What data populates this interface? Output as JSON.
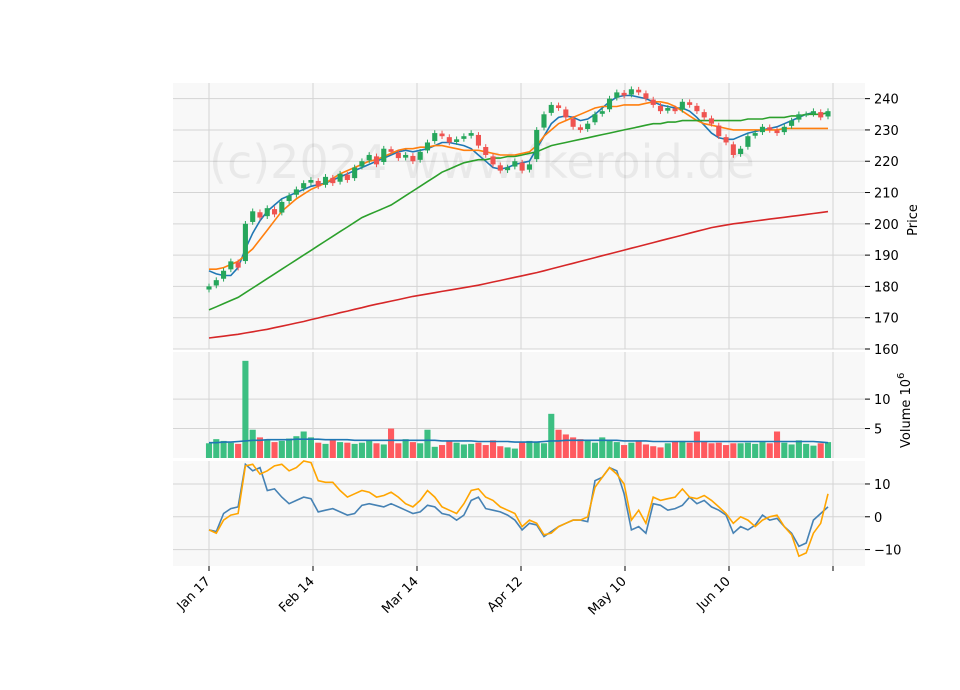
{
  "chart_data": {
    "type": "candlestick",
    "watermark": "(c)2024 www.fkeroid.de",
    "x_tick_labels": [
      "Jan 17",
      "Feb 14",
      "Mar 14",
      "Apr 12",
      "May 10",
      "Jun 10"
    ],
    "price_panel": {
      "ylabel": "Price",
      "ylim": [
        160,
        245
      ],
      "yticks": [
        160,
        170,
        180,
        190,
        200,
        210,
        220,
        230,
        240
      ],
      "ohlc_close": [
        180,
        182,
        185,
        188,
        186,
        200,
        204,
        202,
        205,
        203,
        207,
        209,
        211,
        213,
        214,
        212,
        215,
        213,
        216,
        214,
        218,
        220,
        222,
        219,
        224,
        223,
        221,
        222,
        220,
        223,
        226,
        229,
        228,
        226,
        227,
        228,
        229,
        225,
        222,
        219,
        217,
        218,
        220,
        217,
        219,
        230,
        235,
        238,
        237,
        234,
        231,
        230,
        232,
        235,
        236,
        240,
        242,
        241,
        243,
        242,
        240,
        238,
        236,
        237,
        236,
        239,
        238,
        236,
        234,
        232,
        228,
        226,
        222,
        224,
        228,
        229,
        231,
        230,
        229,
        231,
        233,
        235,
        235,
        236,
        234,
        236
      ]
    },
    "moving_averages": [
      {
        "color": "#1f77b4",
        "values": [
          185,
          184,
          183.5,
          183.5,
          186,
          192,
          197,
          201,
          204,
          206,
          208,
          209,
          210,
          211,
          212,
          212.5,
          213,
          214,
          215,
          216,
          217,
          218,
          219,
          220,
          221,
          222,
          223,
          223.5,
          223,
          223.5,
          224,
          225,
          226,
          226,
          225.5,
          225,
          224,
          222,
          220,
          218,
          217.5,
          218,
          219,
          219.5,
          220,
          224,
          228,
          232,
          234,
          234.5,
          234,
          233,
          233.5,
          235,
          237,
          239,
          240.5,
          241,
          241,
          240.5,
          240,
          239,
          238,
          237.5,
          237,
          237,
          236,
          234,
          231.5,
          229,
          227.5,
          227,
          227,
          228,
          229,
          229.5,
          230,
          230.5,
          231,
          232,
          233,
          234,
          235,
          235.5
        ]
      },
      {
        "color": "#ff7f0e",
        "values": [
          185.5,
          185.5,
          186,
          187,
          188,
          190,
          192,
          195,
          198,
          201,
          204,
          206,
          208,
          209.5,
          211,
          212,
          213,
          214.5,
          216,
          217,
          218,
          219,
          220,
          220.5,
          221.5,
          222.5,
          223.5,
          224,
          224,
          224.5,
          224.5,
          225,
          225,
          224.5,
          224,
          223.5,
          223.5,
          223.5,
          223,
          222.5,
          222,
          222,
          222,
          222.5,
          223,
          225,
          228,
          230,
          232,
          233,
          234,
          235,
          236,
          237,
          237.5,
          237.5,
          237.5,
          238,
          238,
          238,
          238.5,
          239,
          239,
          238.5,
          237.5,
          236,
          234.5,
          233,
          232,
          231.5,
          231,
          230.5,
          230,
          230,
          230,
          230,
          230,
          230,
          230,
          230.5,
          230.5,
          230.5,
          230.5,
          230.5,
          230.5,
          230.5
        ]
      },
      {
        "color": "#2ca02c",
        "values": [
          172.5,
          173.5,
          174.5,
          175.5,
          176.5,
          178,
          179.5,
          181,
          182.5,
          184,
          185.5,
          187,
          188.5,
          190,
          191.5,
          193,
          194.5,
          196,
          197.5,
          199,
          200.5,
          202,
          203,
          204,
          205,
          206,
          207.5,
          209,
          210.5,
          212,
          213.5,
          215,
          216.5,
          217.5,
          218.5,
          219.5,
          220,
          220.5,
          220.5,
          221,
          221,
          221.5,
          221.5,
          222,
          222.5,
          223,
          224,
          225,
          225.5,
          226,
          226.5,
          227,
          227.5,
          228,
          228.5,
          229,
          229.5,
          230,
          230.5,
          231,
          231.5,
          232,
          232,
          232.5,
          232.5,
          233,
          233,
          233,
          233,
          233,
          233,
          233,
          233,
          233,
          233.5,
          233.5,
          233.5,
          234,
          234,
          234,
          234.5,
          234.5,
          235,
          235,
          235,
          235.5
        ]
      },
      {
        "color": "#d62728",
        "values": [
          163.5,
          163.8,
          164.1,
          164.4,
          164.7,
          165.1,
          165.5,
          165.9,
          166.3,
          166.8,
          167.3,
          167.8,
          168.3,
          168.8,
          169.4,
          169.9,
          170.5,
          171,
          171.6,
          172.1,
          172.7,
          173.2,
          173.8,
          174.3,
          174.8,
          175.3,
          175.8,
          176.3,
          176.8,
          177.2,
          177.6,
          178,
          178.4,
          178.8,
          179.2,
          179.6,
          180,
          180.4,
          180.9,
          181.4,
          181.9,
          182.4,
          182.9,
          183.4,
          183.9,
          184.4,
          185,
          185.6,
          186.2,
          186.8,
          187.4,
          188,
          188.6,
          189.2,
          189.8,
          190.4,
          191,
          191.6,
          192.2,
          192.8,
          193.4,
          194,
          194.6,
          195.2,
          195.8,
          196.4,
          197,
          197.6,
          198.2,
          198.8,
          199.2,
          199.6,
          200,
          200.3,
          200.6,
          200.9,
          201.2,
          201.5,
          201.8,
          202.1,
          202.4,
          202.7,
          203,
          203.3,
          203.6,
          203.9
        ]
      }
    ],
    "volume_panel": {
      "ylabel": "Volume  10",
      "ylabel_exponent": "6",
      "ylim": [
        0,
        18
      ],
      "yticks": [
        5,
        10
      ],
      "values": [
        2.5,
        3.2,
        2.9,
        2.6,
        2.4,
        16.5,
        4.8,
        3.5,
        3.0,
        2.7,
        2.9,
        3.3,
        3.7,
        4.5,
        3.5,
        2.6,
        2.4,
        3.0,
        2.7,
        2.6,
        2.4,
        2.6,
        2.9,
        2.5,
        2.3,
        5.0,
        2.5,
        3.2,
        2.7,
        2.5,
        4.8,
        1.9,
        2.2,
        2.8,
        2.6,
        2.3,
        2.4,
        2.6,
        2.2,
        3.0,
        2.0,
        1.8,
        1.6,
        2.8,
        2.9,
        2.7,
        2.5,
        7.5,
        4.8,
        4.0,
        3.5,
        3.2,
        2.9,
        2.6,
        3.5,
        3.0,
        2.7,
        2.2,
        2.6,
        2.9,
        2.3,
        2.0,
        1.8,
        2.5,
        2.8,
        2.9,
        2.6,
        4.5,
        2.7,
        2.5,
        2.6,
        2.2,
        2.5,
        2.5,
        2.6,
        2.4,
        2.7,
        2.5,
        4.5,
        2.6,
        2.3,
        3.0,
        2.4,
        2.1,
        2.5,
        2.7
      ],
      "avg_line": {
        "color": "#1f77b4",
        "values": [
          2.6,
          2.6,
          2.7,
          2.7,
          2.8,
          2.9,
          3.0,
          3.0,
          3.1,
          3.1,
          3.1,
          3.1,
          3.2,
          3.2,
          3.2,
          3.2,
          3.1,
          3.1,
          3.1,
          3.1,
          3.0,
          3.0,
          3.0,
          3.0,
          3.0,
          3.0,
          3.0,
          3.0,
          3.0,
          3.0,
          3.0,
          3.0,
          2.9,
          2.9,
          2.9,
          2.9,
          2.9,
          2.8,
          2.8,
          2.8,
          2.8,
          2.8,
          2.7,
          2.7,
          2.7,
          2.7,
          2.8,
          2.9,
          2.9,
          3.0,
          3.0,
          3.0,
          3.0,
          3.0,
          3.0,
          3.0,
          3.0,
          2.9,
          2.9,
          2.9,
          2.9,
          2.8,
          2.8,
          2.8,
          2.8,
          2.8,
          2.8,
          2.8,
          2.8,
          2.8,
          2.8,
          2.8,
          2.8,
          2.8,
          2.8,
          2.8,
          2.8,
          2.8,
          2.8,
          2.8,
          2.8,
          2.8,
          2.8,
          2.8,
          2.7,
          2.6
        ]
      }
    },
    "oscillator_panel": {
      "ylim": [
        -15,
        17
      ],
      "yticks": [
        -10,
        0,
        10
      ],
      "series": [
        {
          "color": "#4682b4",
          "values": [
            -4,
            -4.5,
            1,
            2.5,
            3,
            16,
            14,
            15,
            8,
            8.5,
            6,
            4,
            5,
            6,
            5.5,
            1.5,
            2,
            2.5,
            1.5,
            0.5,
            1,
            3.5,
            4,
            3.5,
            3,
            4,
            3,
            2,
            1,
            1.5,
            3.5,
            3,
            1,
            0.5,
            -1,
            0.5,
            5,
            6,
            2.5,
            2,
            1.5,
            0.5,
            -1,
            -4,
            -2,
            -2.5,
            -6,
            -4.5,
            -3,
            -2,
            -1,
            -1,
            -1.5,
            11,
            12,
            15,
            14,
            7,
            -4,
            -3,
            -5,
            4,
            3.5,
            2,
            2.5,
            3.5,
            6,
            4,
            5,
            3,
            2,
            0.5,
            -5,
            -3,
            -4,
            -2.5,
            0.5,
            -1,
            -0.5,
            -3,
            -5,
            -9,
            -8,
            -1,
            1,
            3
          ]
        },
        {
          "color": "#ffa500",
          "values": [
            -4,
            -5,
            -1,
            0.5,
            1,
            15.5,
            16,
            13,
            14,
            15.5,
            16,
            14,
            15,
            17,
            16.5,
            11,
            10.5,
            10.5,
            8,
            6,
            7,
            8,
            7.5,
            6,
            6.5,
            7.5,
            6,
            4,
            3,
            5,
            8,
            6,
            3,
            2,
            1,
            4,
            8,
            8.5,
            6,
            5,
            3,
            2,
            1,
            -3,
            -1,
            -2,
            -5.5,
            -5,
            -3,
            -2,
            -1,
            -1,
            0,
            9,
            12,
            15,
            13,
            10,
            -1,
            2,
            -2,
            6,
            5,
            5.5,
            6,
            8.5,
            6,
            5.5,
            6.5,
            5,
            3,
            1,
            -2,
            0,
            -1,
            -3,
            -1,
            0,
            0.5,
            -3,
            -5.5,
            -12,
            -11,
            -5,
            -2,
            7
          ]
        }
      ]
    }
  }
}
